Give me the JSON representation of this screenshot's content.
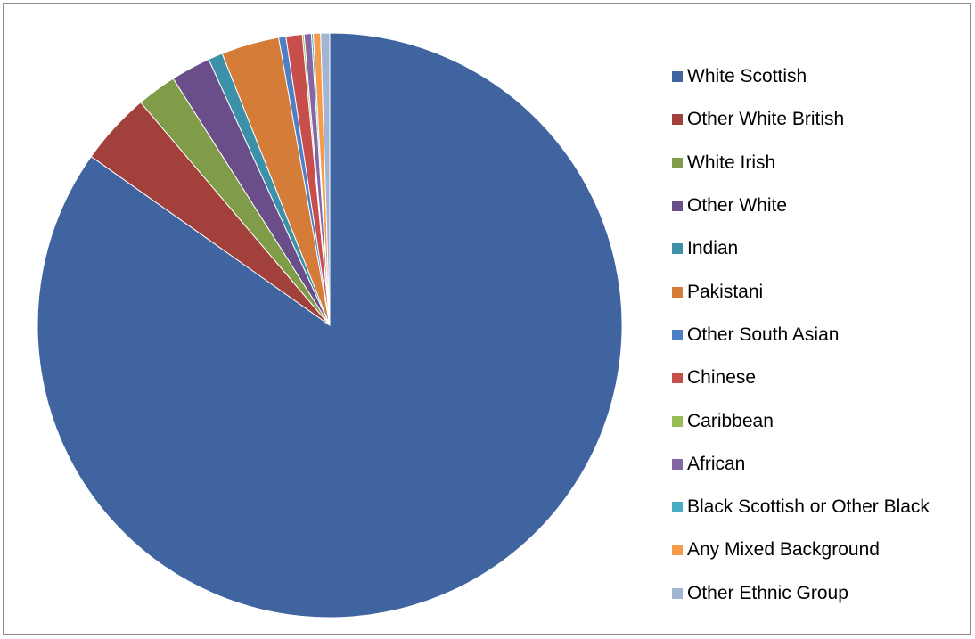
{
  "chart_data": {
    "type": "pie",
    "title": "",
    "legend_position": "right",
    "start_angle": "12 o'clock, clockwise",
    "categories": [
      "White Scottish",
      "Other White British",
      "White Irish",
      "Other White",
      "Indian",
      "Pakistani",
      "Other South Asian",
      "Chinese",
      "Caribbean",
      "African",
      "Black Scottish or Other Black",
      "Any Mixed Background",
      "Other Ethnic Group"
    ],
    "values": [
      84.8,
      4.0,
      2.2,
      2.2,
      0.8,
      3.2,
      0.4,
      0.9,
      0.1,
      0.4,
      0.1,
      0.4,
      0.5
    ],
    "colors": [
      "#4064a0",
      "#a2403c",
      "#809c48",
      "#6a4e8a",
      "#3c91a8",
      "#d47c38",
      "#4e7ec4",
      "#c84e4c",
      "#98bc56",
      "#8466a4",
      "#48acc4",
      "#f49a48",
      "#a2b6d4"
    ]
  }
}
